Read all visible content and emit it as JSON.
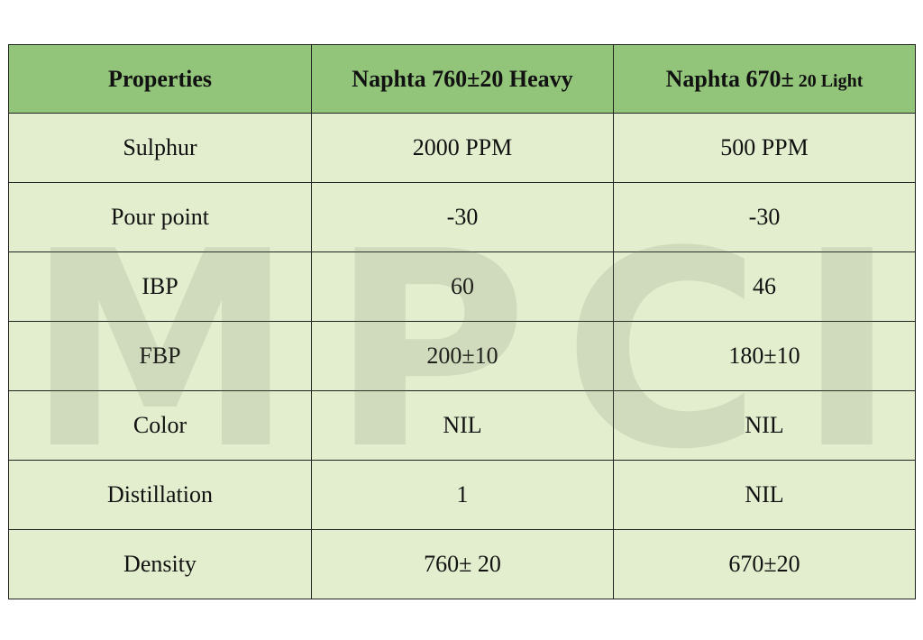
{
  "table": {
    "headers": {
      "col1": "Properties",
      "col2": "Naphta 760±20 Heavy",
      "col3_main": "Naphta 670±",
      "col3_suffix": " 20 Light"
    },
    "rows": [
      {
        "property": "Sulphur",
        "heavy": "2000 PPM",
        "light": "500 PPM"
      },
      {
        "property": "Pour point",
        "heavy": "-30",
        "light": "-30"
      },
      {
        "property": "IBP",
        "heavy": "60",
        "light": "46"
      },
      {
        "property": "FBP",
        "heavy": "200±10",
        "light": "180±10"
      },
      {
        "property": "Color",
        "heavy": "NIL",
        "light": "NIL"
      },
      {
        "property": "Distillation",
        "heavy": "1",
        "light": "NIL"
      },
      {
        "property": "Density",
        "heavy": "760± 20",
        "light": "670±20"
      }
    ]
  },
  "watermark": "MPCI",
  "colors": {
    "header_bg": "#92c47a",
    "cell_bg": "#e3eecf",
    "border": "#222222"
  }
}
